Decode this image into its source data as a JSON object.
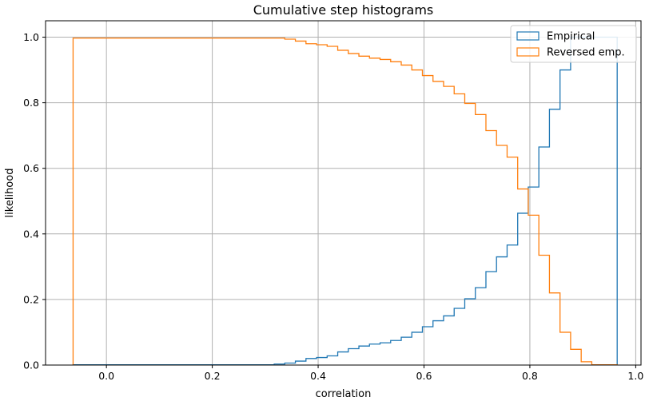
{
  "chart_data": {
    "type": "line",
    "title": "Cumulative step histograms",
    "xlabel": "correlation",
    "ylabel": "likelihood",
    "xlim": [
      -0.115,
      1.01
    ],
    "ylim": [
      0,
      1.05
    ],
    "xticks": [
      0.0,
      0.2,
      0.4,
      0.6,
      0.8,
      1.0
    ],
    "xtick_labels": [
      "0.0",
      "0.2",
      "0.4",
      "0.6",
      "0.8",
      "1.0"
    ],
    "yticks": [
      0.0,
      0.2,
      0.4,
      0.6,
      0.8,
      1.0
    ],
    "ytick_labels": [
      "0.0",
      "0.2",
      "0.4",
      "0.6",
      "0.8",
      "1.0"
    ],
    "grid": true,
    "legend": "top-right",
    "step_edges_x": [
      -0.063,
      -0.043,
      -0.023,
      -0.003,
      0.017,
      0.037,
      0.057,
      0.077,
      0.097,
      0.117,
      0.137,
      0.157,
      0.177,
      0.197,
      0.217,
      0.237,
      0.257,
      0.277,
      0.297,
      0.317,
      0.337,
      0.357,
      0.377,
      0.397,
      0.417,
      0.437,
      0.457,
      0.477,
      0.497,
      0.517,
      0.537,
      0.557,
      0.577,
      0.597,
      0.617,
      0.637,
      0.657,
      0.677,
      0.697,
      0.717,
      0.737,
      0.757,
      0.777,
      0.797,
      0.817,
      0.837,
      0.857,
      0.877,
      0.897,
      0.917,
      0.937,
      0.957,
      0.965
    ],
    "series": [
      {
        "name": "Empirical",
        "color": "#1f77b4",
        "values": [
          0.001,
          0.001,
          0.001,
          0.001,
          0.001,
          0.001,
          0.001,
          0.001,
          0.001,
          0.001,
          0.001,
          0.001,
          0.001,
          0.001,
          0.001,
          0.001,
          0.001,
          0.001,
          0.001,
          0.003,
          0.006,
          0.012,
          0.02,
          0.023,
          0.028,
          0.04,
          0.05,
          0.058,
          0.064,
          0.068,
          0.075,
          0.085,
          0.1,
          0.117,
          0.135,
          0.15,
          0.173,
          0.202,
          0.236,
          0.285,
          0.33,
          0.366,
          0.463,
          0.543,
          0.665,
          0.78,
          0.9,
          1.0,
          1.0,
          1.0,
          1.0,
          1.0
        ]
      },
      {
        "name": "Reversed emp.",
        "color": "#ff7f0e",
        "values": [
          0.997,
          0.997,
          0.997,
          0.997,
          0.997,
          0.997,
          0.997,
          0.997,
          0.997,
          0.997,
          0.997,
          0.997,
          0.997,
          0.997,
          0.997,
          0.997,
          0.997,
          0.997,
          0.997,
          0.997,
          0.994,
          0.988,
          0.98,
          0.977,
          0.972,
          0.96,
          0.95,
          0.942,
          0.936,
          0.932,
          0.925,
          0.915,
          0.9,
          0.883,
          0.865,
          0.85,
          0.827,
          0.798,
          0.764,
          0.715,
          0.67,
          0.634,
          0.537,
          0.457,
          0.335,
          0.22,
          0.1,
          0.048,
          0.01,
          0.001,
          0.001,
          0.001
        ]
      }
    ]
  }
}
